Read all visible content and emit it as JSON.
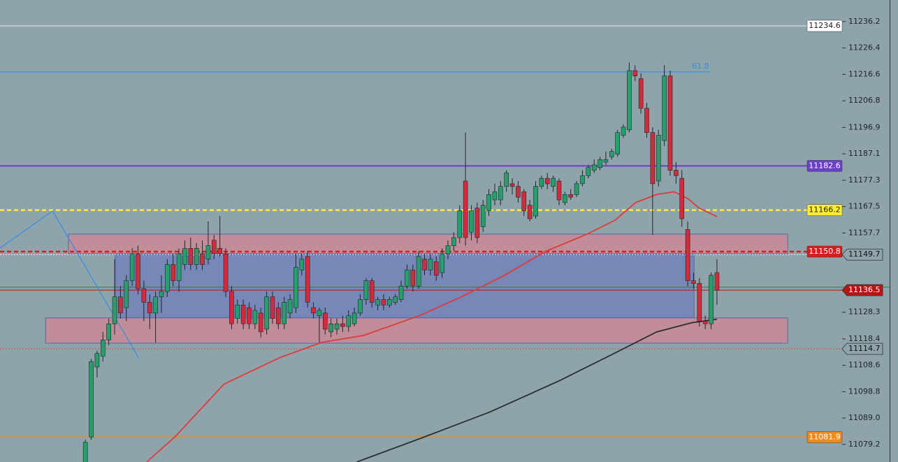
{
  "chart_data": {
    "type": "candlestick",
    "xlim": [
      -14.6,
      129.4
    ],
    "ylim": [
      11072.7,
      11244.2
    ],
    "yticks": [
      11236.2,
      11226.4,
      11216.6,
      11206.8,
      11196.9,
      11187.1,
      11177.3,
      11167.5,
      11157.7,
      11128.3,
      11118.4,
      11108.6,
      11098.8,
      {
        "value": 11089,
        "label": "11089.0"
      },
      11079.2
    ],
    "up_color": "#23a06c",
    "down_color": "#d42a3c",
    "ohlc": [
      [
        11072,
        11081,
        11071,
        11080
      ],
      [
        11082,
        11111,
        11081,
        11110
      ],
      [
        11108,
        11114,
        11104,
        11113
      ],
      [
        11112,
        11121,
        11110,
        11118
      ],
      [
        11118,
        11126,
        11116,
        11124
      ],
      [
        11124,
        11148,
        11120,
        11134
      ],
      [
        11134,
        11138,
        11126,
        11128
      ],
      [
        11130,
        11142,
        11125,
        11140
      ],
      [
        11140,
        11152,
        11138,
        11150
      ],
      [
        11150,
        11153,
        11135,
        11137
      ],
      [
        11137,
        11140,
        11125,
        11132
      ],
      [
        11132,
        11135,
        11122,
        11128
      ],
      [
        11128,
        11136,
        11117,
        11134
      ],
      [
        11134,
        11142,
        11128,
        11136
      ],
      [
        11136,
        11148,
        11134,
        11146
      ],
      [
        11146,
        11150,
        11138,
        11140
      ],
      [
        11140,
        11152,
        11136,
        11150
      ],
      [
        11146,
        11155,
        11144,
        11152
      ],
      [
        11152,
        11156,
        11144,
        11146
      ],
      [
        11146,
        11154,
        11144,
        11152
      ],
      [
        11150,
        11155,
        11144,
        11146
      ],
      [
        11148,
        11162,
        11146,
        11153
      ],
      [
        11155,
        11157,
        11148,
        11150
      ],
      [
        11152,
        11164,
        11149,
        11150
      ],
      [
        11150,
        11152,
        11134,
        11136
      ],
      [
        11136,
        11138,
        11122,
        11124
      ],
      [
        11126,
        11133,
        11124,
        11131
      ],
      [
        11131,
        11133,
        11122,
        11124
      ],
      [
        11130,
        11132,
        11122,
        11124
      ],
      [
        11124,
        11131,
        11122,
        11129
      ],
      [
        11128,
        11130,
        11119,
        11121
      ],
      [
        11122,
        11136,
        11120,
        11134
      ],
      [
        11134,
        11136,
        11124,
        11126
      ],
      [
        11130,
        11132,
        11122,
        11124
      ],
      [
        11124,
        11134,
        11122,
        11132
      ],
      [
        11128,
        11135,
        11126,
        11133
      ],
      [
        11130,
        11150,
        11128,
        11145
      ],
      [
        11144,
        11150,
        11142,
        11148
      ],
      [
        11149,
        11151,
        11130,
        11132
      ],
      [
        11130,
        11132,
        11126,
        11128
      ],
      [
        11127,
        11130,
        11117,
        11129
      ],
      [
        11128,
        11130,
        11120,
        11122
      ],
      [
        11121,
        11126,
        11119,
        11124
      ],
      [
        11122,
        11126,
        11120,
        11124
      ],
      [
        11124,
        11127,
        11121,
        11123
      ],
      [
        11123,
        11129,
        11121,
        11127
      ],
      [
        11124,
        11130,
        11123,
        11128
      ],
      [
        11128,
        11135,
        11127,
        11133
      ],
      [
        11133,
        11141,
        11131,
        11140
      ],
      [
        11140,
        11141,
        11130,
        11132
      ],
      [
        11131,
        11134,
        11129,
        11133
      ],
      [
        11133,
        11135,
        11129,
        11131
      ],
      [
        11131,
        11134,
        11130,
        11133
      ],
      [
        11132,
        11135,
        11131,
        11134
      ],
      [
        11133,
        11140,
        11132,
        11138
      ],
      [
        11138,
        11146,
        11137,
        11144
      ],
      [
        11144,
        11146,
        11136,
        11138
      ],
      [
        11138,
        11151,
        11137,
        11149
      ],
      [
        11148,
        11150,
        11142,
        11144
      ],
      [
        11144,
        11150,
        11142,
        11148
      ],
      [
        11147,
        11149,
        11140,
        11142
      ],
      [
        11143,
        11152,
        11141,
        11150
      ],
      [
        11150,
        11155,
        11148,
        11153
      ],
      [
        11153,
        11158,
        11151,
        11156
      ],
      [
        11156,
        11168,
        11154,
        11166
      ],
      [
        11177,
        11195,
        11153,
        11156
      ],
      [
        11158,
        11168,
        11155,
        11166
      ],
      [
        11167,
        11169,
        11154,
        11156
      ],
      [
        11160,
        11170,
        11158,
        11168
      ],
      [
        11166,
        11174,
        11164,
        11172
      ],
      [
        11170,
        11176,
        11168,
        11173
      ],
      [
        11170,
        11177,
        11168,
        11175
      ],
      [
        11175,
        11181,
        11173,
        11180
      ],
      [
        11176,
        11178,
        11172,
        11175
      ],
      [
        11175,
        11177,
        11169,
        11171
      ],
      [
        11173,
        11174,
        11164,
        11166
      ],
      [
        11168,
        11170,
        11162,
        11163
      ],
      [
        11164,
        11177,
        11163,
        11175
      ],
      [
        11175,
        11179,
        11174,
        11178
      ],
      [
        11178,
        11180,
        11174,
        11176
      ],
      [
        11175,
        11179,
        11173,
        11178
      ],
      [
        11177,
        11178,
        11168,
        11170
      ],
      [
        11169,
        11173,
        11168,
        11172
      ],
      [
        11172,
        11174,
        11170,
        11171
      ],
      [
        11172,
        11177,
        11171,
        11176
      ],
      [
        11176,
        11181,
        11175,
        11179
      ],
      [
        11179,
        11183,
        11178,
        11182
      ],
      [
        11181,
        11185,
        11180,
        11183
      ],
      [
        11182,
        11186,
        11181,
        11185
      ],
      [
        11184,
        11188,
        11183,
        11185
      ],
      [
        11186,
        11189,
        11185,
        11188
      ],
      [
        11187,
        11196,
        11186,
        11195
      ],
      [
        11194,
        11198,
        11193,
        11197
      ],
      [
        11196,
        11221,
        11195,
        11218
      ],
      [
        11218,
        11220,
        11214,
        11216
      ],
      [
        11215,
        11217,
        11202,
        11204
      ],
      [
        11204,
        11206,
        11193,
        11195
      ],
      [
        11195,
        11197,
        11157,
        11176
      ],
      [
        11177,
        11196,
        11175,
        11194
      ],
      [
        11192,
        11220,
        11190,
        11216
      ],
      [
        11216,
        11218,
        11179,
        11181
      ],
      [
        11181,
        11184,
        11176,
        11179
      ],
      [
        11178,
        11181,
        11160,
        11163
      ],
      [
        11159,
        11162,
        11138,
        11140
      ],
      [
        11140,
        11143,
        11137,
        11139
      ],
      [
        11139,
        11141,
        11123,
        11125
      ],
      [
        11125,
        11127,
        11122,
        11124
      ],
      [
        11124,
        11143,
        11122,
        11142
      ],
      [
        11143,
        11148,
        11131,
        11136.5
      ]
    ],
    "moving_averages": [
      {
        "color": "#e23a3a",
        "x": [
          10.5,
          15.3,
          23.7,
          33.2,
          40.4,
          47.6,
          57.1,
          64.3,
          71.5,
          78.6,
          85.8,
          90.6,
          94.1,
          97.7,
          100.7,
          103.1,
          104.9,
          108
        ],
        "values": [
          11072.7,
          11082,
          11101.6,
          11111.4,
          11117.1,
          11119.7,
          11127,
          11134,
          11141.8,
          11150.8,
          11157.3,
          11162.5,
          11169,
          11172,
          11173,
          11170.4,
          11167,
          11163.8
        ]
      },
      {
        "color": "#2a2e30",
        "x": [
          46.4,
          57.1,
          69.1,
          81,
          90.6,
          97.7,
          103.7,
          108
        ],
        "values": [
          11072.7,
          11081.3,
          11091.2,
          11102.8,
          11113.2,
          11121,
          11124.4,
          11125.7
        ]
      }
    ],
    "zones": [
      {
        "x": [
          -2.9,
          120.1
        ],
        "y": [
          11157.3,
          11150
        ],
        "color": "#c98a95"
      },
      {
        "x": [
          5.1,
          104.1
        ],
        "y": [
          11149.8,
          11126.2
        ],
        "color": "#7382b8"
      },
      {
        "x": [
          -6.8,
          120.1
        ],
        "y": [
          11126.2,
          11116.8
        ],
        "color": "#c98a95"
      }
    ],
    "trendline": {
      "color": "#2f8fe6",
      "x": [
        -14.6,
        -5.6,
        9.1
      ],
      "values": [
        11152.1,
        11165.9,
        11111.4
      ]
    },
    "fib": {
      "value": 11217.5,
      "label": "61.8",
      "color": "#2f8fe6",
      "x_end": 106.9
    },
    "guides": [
      {
        "value": 11137.6,
        "color": "#2f7f4a"
      }
    ],
    "levels": [
      {
        "value": 11234.6,
        "color": "#e6ecef",
        "style": "solid",
        "text_color": "#222",
        "tag": "chart"
      },
      {
        "value": 11182.6,
        "color": "#6b3fc8",
        "style": "solid",
        "text_color": "#ffffff",
        "tag": "chart"
      },
      {
        "value": 11166.2,
        "color": "#ffee33",
        "style": "dashed",
        "text_color": "#222",
        "tag": "chart"
      },
      {
        "value": 11150.8,
        "color": "#d61e1e",
        "style": "dashed",
        "text_color": "#ffffff",
        "tag": "chart"
      },
      {
        "value": 11081.9,
        "color": "#f08a1c",
        "style": "solid",
        "text_color": "#ffffff",
        "tag": "chart"
      },
      {
        "value": 11149.7,
        "color": "#f4f4f4",
        "style": "dotted",
        "text_color": "#111",
        "tag": "axis"
      },
      {
        "value": 11136.5,
        "color": "#b81414",
        "style": "solid",
        "text_color": "#ffffff",
        "tag": "axis"
      },
      {
        "value": 11114.7,
        "color": "#d04848",
        "style": "dotted",
        "text_color": "#111",
        "tag": "axis"
      }
    ]
  }
}
